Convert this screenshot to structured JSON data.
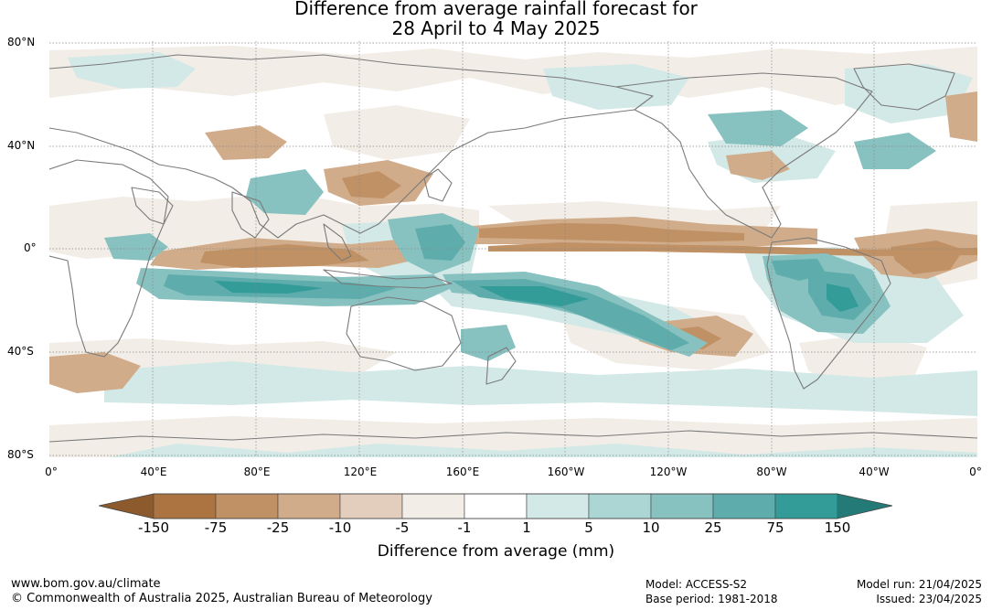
{
  "title": {
    "line1": "Difference from average rainfall forecast for",
    "line2": "28 April to 4 May 2025"
  },
  "map": {
    "lat_labels": [
      "80°N",
      "40°N",
      "0°",
      "40°S",
      "80°S"
    ],
    "lon_labels": [
      "0°",
      "40°E",
      "80°E",
      "120°E",
      "160°E",
      "160°W",
      "120°W",
      "80°W",
      "40°W",
      "0°"
    ]
  },
  "legend": {
    "title": "Difference from average (mm)",
    "ticks": [
      "-150",
      "-75",
      "-25",
      "-10",
      "-5",
      "-1",
      "1",
      "5",
      "10",
      "25",
      "75",
      "150"
    ],
    "colors": {
      "below_min": "#8c5a2c",
      "bins": [
        "#ab7441",
        "#bf9165",
        "#d1ac8a",
        "#e3cebd",
        "#f2ede6",
        "#ffffff",
        "#d3e9e7",
        "#abd6d4",
        "#87c1c0",
        "#5eadac",
        "#339b98"
      ],
      "above_max": "#247a77"
    }
  },
  "footer": {
    "website": "www.bom.gov.au/climate",
    "copyright": "© Commonwealth of Australia 2025, Australian Bureau of Meteorology",
    "model": "Model: ACCESS-S2",
    "base_period": "Base period: 1981-2018",
    "model_run": "Model run: 21/04/2025",
    "issued": "Issued: 23/04/2025"
  }
}
